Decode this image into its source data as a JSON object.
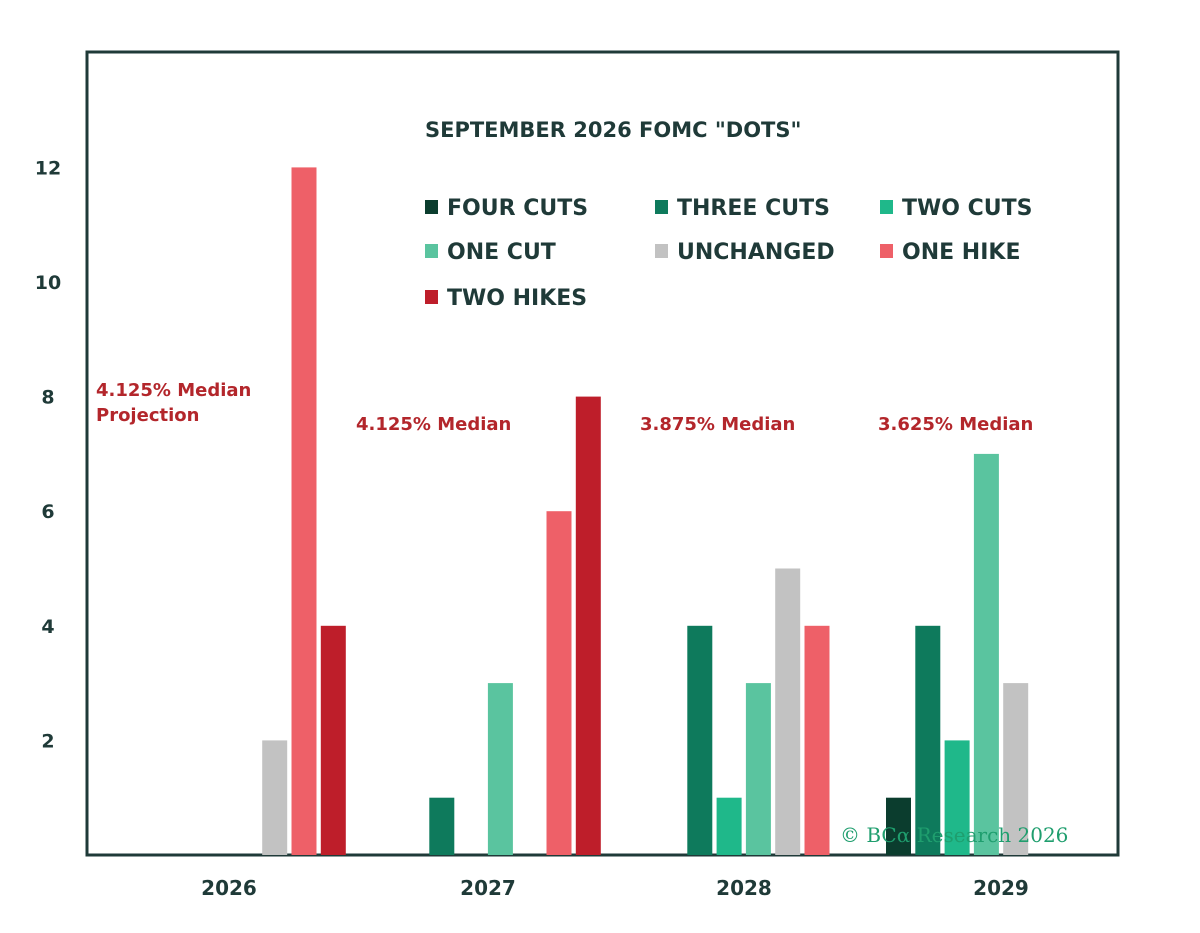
{
  "chart_data": {
    "type": "bar",
    "title": "SEPTEMBER 2026 FOMC \"DOTS\"",
    "categories": [
      "2026",
      "2027",
      "2028",
      "2029"
    ],
    "ylim": [
      0,
      13.5
    ],
    "yticks": [
      2,
      4,
      6,
      8,
      10,
      12
    ],
    "grid": false,
    "legend_position": "top-center",
    "series": [
      {
        "name": "FOUR CUTS",
        "color": "#0b3d2e",
        "values": [
          0,
          0,
          0,
          1
        ]
      },
      {
        "name": "THREE CUTS",
        "color": "#0e7a5c",
        "values": [
          0,
          1,
          4,
          4
        ]
      },
      {
        "name": "TWO CUTS",
        "color": "#1fb88a",
        "values": [
          0,
          0,
          1,
          2
        ]
      },
      {
        "name": "ONE CUT",
        "color": "#5ac49f",
        "values": [
          0,
          3,
          3,
          7
        ]
      },
      {
        "name": "UNCHANGED",
        "color": "#c2c2c2",
        "values": [
          2,
          0,
          5,
          3
        ]
      },
      {
        "name": "ONE HIKE",
        "color": "#ee6068",
        "values": [
          12,
          6,
          4,
          0
        ]
      },
      {
        "name": "TWO HIKES",
        "color": "#be1e2a",
        "values": [
          4,
          8,
          0,
          0
        ]
      }
    ],
    "annotations": [
      {
        "category": "2026",
        "lines": [
          "4.125% Median",
          "Projection"
        ]
      },
      {
        "category": "2027",
        "lines": [
          "4.125% Median"
        ]
      },
      {
        "category": "2028",
        "lines": [
          "3.875% Median"
        ]
      },
      {
        "category": "2029",
        "lines": [
          "3.625% Median"
        ]
      }
    ]
  },
  "watermark": "© BCα Research 2026"
}
